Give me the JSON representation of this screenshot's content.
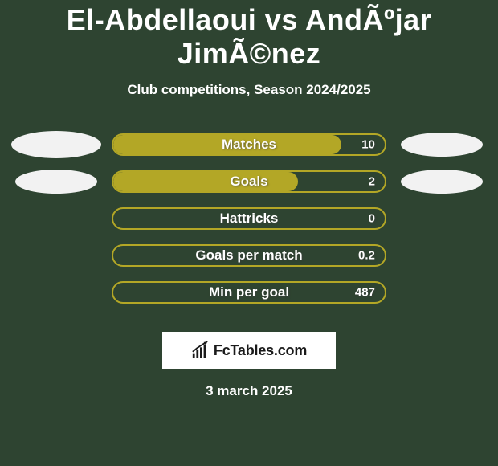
{
  "title": "El-Abdellaoui vs AndÃºjar JimÃ©nez",
  "subtitle": "Club competitions, Season 2024/2025",
  "date": "3 march 2025",
  "logo_text": "FcTables.com",
  "colors": {
    "background": "#2e4431",
    "bar_border": "#b3a726",
    "bar_fill": "#b3a726",
    "ellipse": "#f2f2f2",
    "logo_plate_bg": "#ffffff",
    "logo_text": "#1a1a1a",
    "text": "#ffffff"
  },
  "left_ellipses": [
    true,
    true,
    false,
    false,
    false
  ],
  "right_ellipses": [
    true,
    true,
    false,
    false,
    false
  ],
  "stats": [
    {
      "label": "Matches",
      "value": "10",
      "fill_pct": 84
    },
    {
      "label": "Goals",
      "value": "2",
      "fill_pct": 68
    },
    {
      "label": "Hattricks",
      "value": "0",
      "fill_pct": 0
    },
    {
      "label": "Goals per match",
      "value": "0.2",
      "fill_pct": 0
    },
    {
      "label": "Min per goal",
      "value": "487",
      "fill_pct": 0
    }
  ]
}
